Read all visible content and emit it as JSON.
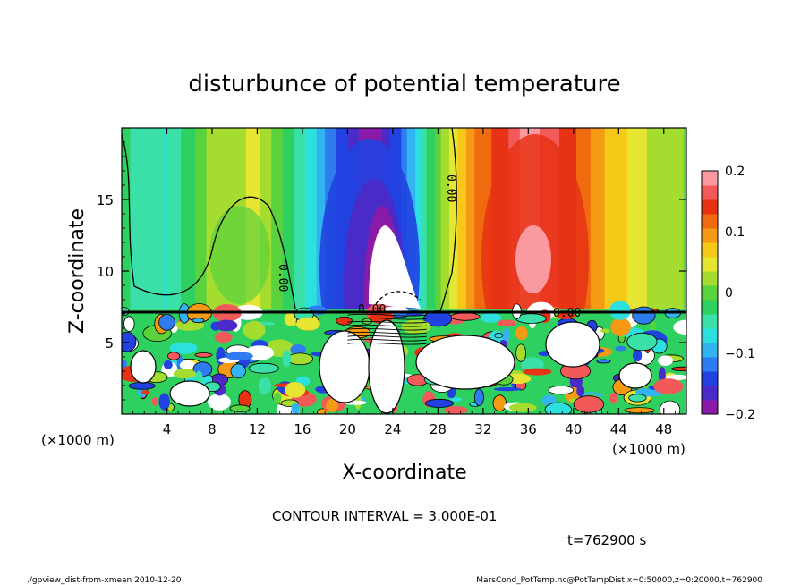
{
  "chart_data": {
    "type": "heatmap",
    "title": "disturbunce of potential temperature",
    "xlabel": "X-coordinate",
    "ylabel": "Z-coordinate",
    "x_unit_left": "(×1000 m)",
    "x_unit_right": "(×1000 m)",
    "xlim": [
      0,
      50
    ],
    "ylim": [
      0,
      20
    ],
    "x_ticks": [
      "4",
      "8",
      "12",
      "16",
      "20",
      "24",
      "28",
      "32",
      "36",
      "40",
      "44",
      "48"
    ],
    "x_tick_values": [
      4,
      8,
      12,
      16,
      20,
      24,
      28,
      32,
      36,
      40,
      44,
      48
    ],
    "y_ticks": [
      "5",
      "10",
      "15"
    ],
    "y_tick_values": [
      5,
      10,
      15
    ],
    "colorbar": {
      "min": -0.2,
      "max": 0.2,
      "tick_labels": [
        "0.2",
        "0.1",
        "0",
        "−0.1",
        "−0.2"
      ],
      "tick_values": [
        0.2,
        0.1,
        0,
        -0.1,
        -0.2
      ],
      "colors": [
        "#8b1aa8",
        "#4a2bc8",
        "#2142e0",
        "#2f7cf0",
        "#32b4f0",
        "#2ce0e0",
        "#3ae0a8",
        "#2ed060",
        "#5ad23c",
        "#a4dc30",
        "#e6e632",
        "#f6c818",
        "#f49a14",
        "#f06a10",
        "#e83214",
        "#f25a5a",
        "#fa9aa0"
      ]
    },
    "contour_labels": [
      "0.00",
      "0.00",
      "0.00",
      "0.00"
    ],
    "contour_interval_text": "CONTOUR INTERVAL = 3.000E-01",
    "time_text": "t=762900 s",
    "footer_left": "./gpview_dist-from-xmean  2010-12-20",
    "footer_right": "MarsCond_PotTemp.nc@PotTempDist,x=0:50000,z=0:20000,t=762900",
    "upper_field_profile": [
      {
        "x": 0,
        "value": -0.03
      },
      {
        "x": 4,
        "value": -0.06
      },
      {
        "x": 8,
        "value": 0.02
      },
      {
        "x": 12,
        "value": 0.04
      },
      {
        "x": 16,
        "value": -0.05
      },
      {
        "x": 19,
        "value": -0.13
      },
      {
        "x": 22,
        "value": -0.2
      },
      {
        "x": 25,
        "value": -0.12
      },
      {
        "x": 28,
        "value": 0.0
      },
      {
        "x": 31,
        "value": 0.1
      },
      {
        "x": 34,
        "value": 0.15
      },
      {
        "x": 36,
        "value": 0.19
      },
      {
        "x": 39,
        "value": 0.15
      },
      {
        "x": 43,
        "value": 0.08
      },
      {
        "x": 47,
        "value": 0.03
      },
      {
        "x": 50,
        "value": 0.01
      }
    ]
  }
}
